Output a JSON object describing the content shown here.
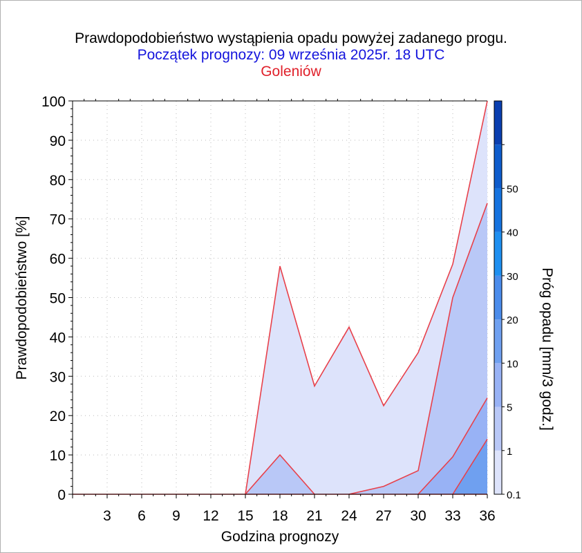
{
  "title": "Prawdopodobieństwo wystąpienia opadu powyżej zadanego progu.",
  "subtitle": "Początek prognozy: 09 września 2025r. 18 UTC",
  "location": "Goleniów",
  "chart_data": {
    "type": "area",
    "title": "Prawdopodobieństwo wystąpienia opadu powyżej zadanego progu.",
    "subtitle": "Początek prognozy: 09 września 2025r. 18 UTC",
    "location": "Goleniów",
    "xlabel": "Godzina prognozy",
    "ylabel": "Prawdopodobieństwo [%]",
    "x": [
      0,
      3,
      6,
      9,
      12,
      15,
      18,
      21,
      24,
      27,
      30,
      33,
      36
    ],
    "xlim": [
      0,
      36
    ],
    "ylim": [
      0,
      100
    ],
    "x_ticks": [
      "3",
      "6",
      "9",
      "12",
      "15",
      "18",
      "21",
      "24",
      "27",
      "30",
      "33",
      "36"
    ],
    "y_ticks": [
      "0",
      "10",
      "20",
      "30",
      "40",
      "50",
      "60",
      "70",
      "80",
      "90",
      "100"
    ],
    "grid": true,
    "series": [
      {
        "threshold": 0.1,
        "color": "#dde3fb",
        "values": [
          0,
          0,
          0,
          0,
          0,
          0,
          58,
          27.5,
          42.5,
          22.5,
          36,
          58.5,
          100
        ]
      },
      {
        "threshold": 1,
        "color": "#b9c8f7",
        "values": [
          0,
          0,
          0,
          0,
          0,
          0,
          10,
          0,
          0,
          2,
          6,
          50,
          74
        ]
      },
      {
        "threshold": 5,
        "color": "#98b2f5",
        "values": [
          0,
          0,
          0,
          0,
          0,
          0,
          0,
          0,
          0,
          0,
          0,
          9.5,
          24.5
        ]
      },
      {
        "threshold": 10,
        "color": "#6fa0f0",
        "values": [
          0,
          0,
          0,
          0,
          0,
          0,
          0,
          0,
          0,
          0,
          0,
          0,
          14
        ]
      }
    ],
    "line_color": "#e8404a",
    "colorbar": {
      "label": "Próg opadu [mm/3 godz.]",
      "levels": [
        {
          "label": "0.1",
          "color": "#dde3fb"
        },
        {
          "label": "1",
          "color": "#b9c8f7"
        },
        {
          "label": "5",
          "color": "#98b2f5"
        },
        {
          "label": "10",
          "color": "#6fa0f0"
        },
        {
          "label": "20",
          "color": "#4b8ceb"
        },
        {
          "label": "30",
          "color": "#1e8ff0"
        },
        {
          "label": "40",
          "color": "#1673df"
        },
        {
          "label": "50",
          "color": "#0e5ccc"
        },
        {
          "label": "",
          "color": "#0a3fb0"
        }
      ]
    }
  }
}
